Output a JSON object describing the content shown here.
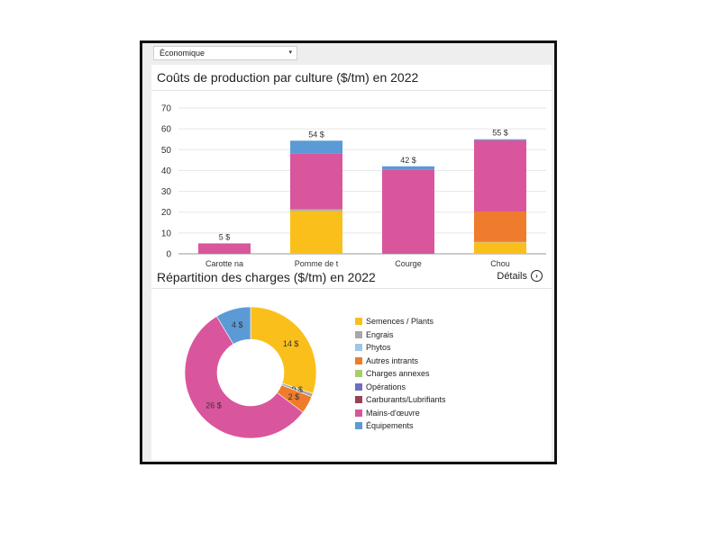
{
  "dropdown": {
    "value": "Économique",
    "caret": "▾"
  },
  "chart_data": [
    {
      "type": "bar",
      "title": "Coûts de production par culture ($/tm) en 2022",
      "stacked": true,
      "ylim": [
        0,
        70
      ],
      "yticks": [
        "0",
        "10",
        "20",
        "30",
        "40",
        "50",
        "60",
        "70"
      ],
      "grid": true,
      "categories": [
        "Carotte na",
        "Pomme de t",
        "Courge",
        "Chou"
      ],
      "totals": [
        "5 $",
        "54 $",
        "42 $",
        "55 $"
      ],
      "series": [
        {
          "name": "Semences / Plants",
          "color": "#fbbf1c",
          "values": [
            0,
            20.5,
            0,
            5.5
          ]
        },
        {
          "name": "Engrais",
          "color": "#a8a8a8",
          "values": [
            0,
            0.5,
            0,
            0.3
          ]
        },
        {
          "name": "Phytos",
          "color": "#9fc5e8",
          "values": [
            0,
            0,
            0,
            0
          ]
        },
        {
          "name": "Autres intrants",
          "color": "#ef7c2c",
          "values": [
            0,
            0,
            0,
            14.5
          ]
        },
        {
          "name": "Charges annexes",
          "color": "#a5cf6b",
          "values": [
            0,
            0.3,
            0,
            0
          ]
        },
        {
          "name": "Opérations",
          "color": "#6c6fbf",
          "values": [
            0,
            0,
            0,
            0
          ]
        },
        {
          "name": "Carburants/Lubrifiants",
          "color": "#9b4057",
          "values": [
            0,
            0,
            0,
            0
          ]
        },
        {
          "name": "Mains-d'œuvre",
          "color": "#d9569c",
          "values": [
            5,
            27,
            40.5,
            34.2
          ]
        },
        {
          "name": "Équipements",
          "color": "#5b9ad5",
          "values": [
            0,
            6,
            1.5,
            0.5
          ]
        }
      ]
    },
    {
      "type": "pie",
      "title": "Répartition des charges ($/tm) en 2022",
      "donut": true,
      "slices": [
        {
          "name": "Semences / Plants",
          "value": 14,
          "label": "14 $",
          "color": "#fbbf1c"
        },
        {
          "name": "Engrais",
          "value": 0.4,
          "label": "0 $",
          "color": "#a8a8a8"
        },
        {
          "name": "Autres intrants",
          "value": 2,
          "label": "2 $",
          "color": "#ef7c2c"
        },
        {
          "name": "Mains-d'œuvre",
          "value": 26,
          "label": "26 $",
          "color": "#d9569c"
        },
        {
          "name": "Équipements",
          "value": 4,
          "label": "4 $",
          "color": "#5b9ad5"
        }
      ],
      "legend": [
        {
          "name": "Semences / Plants",
          "color": "#fbbf1c"
        },
        {
          "name": "Engrais",
          "color": "#a8a8a8"
        },
        {
          "name": "Phytos",
          "color": "#9fc5e8"
        },
        {
          "name": "Autres intrants",
          "color": "#ef7c2c"
        },
        {
          "name": "Charges annexes",
          "color": "#a5cf6b"
        },
        {
          "name": "Opérations",
          "color": "#6c6fbf"
        },
        {
          "name": "Carburants/Lubrifiants",
          "color": "#9b4057"
        },
        {
          "name": "Mains-d'œuvre",
          "color": "#d9569c"
        },
        {
          "name": "Équipements",
          "color": "#5b9ad5"
        }
      ],
      "legend_position": "right"
    }
  ],
  "details": {
    "label": "Détails",
    "icon": "chevron-right-circle-icon",
    "glyph": "›"
  }
}
